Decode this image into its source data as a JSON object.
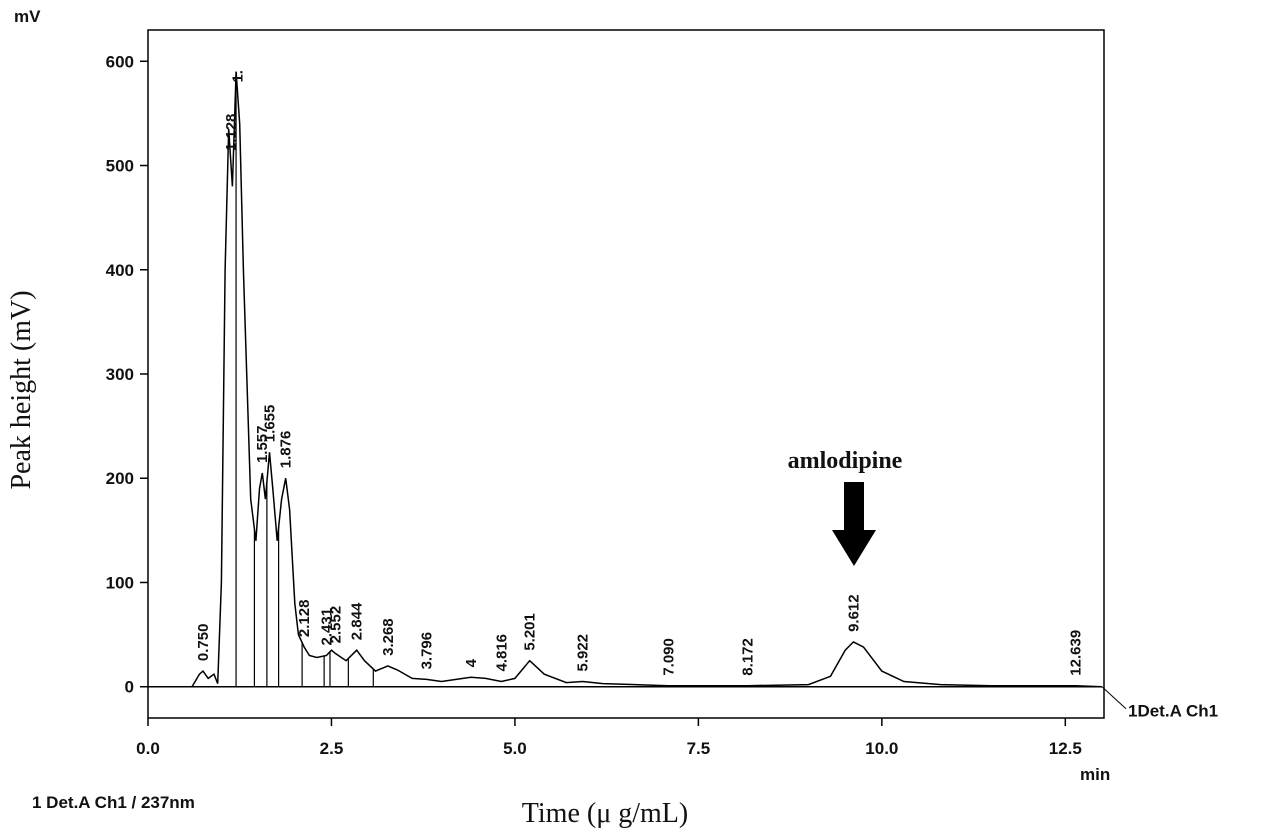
{
  "chart_data": {
    "type": "line",
    "y_unit": "mV",
    "x_unit": "min",
    "ylabel": "Peak height (mV)",
    "xlabel": "Time (μ g/mL)",
    "annotation": "amlodipine",
    "trace_label": "1Det.A Ch1",
    "footer": "1 Det.A Ch1 / 237nm",
    "color": "#000000",
    "xlim": [
      0,
      13
    ],
    "ylim": [
      -30,
      630
    ],
    "xticks": [
      {
        "value": 0,
        "label": "0.0"
      },
      2.5,
      {
        "value": 5,
        "label": "5.0"
      },
      7.5,
      {
        "value": 10,
        "label": "10.0"
      },
      12.5
    ],
    "yticks": [
      0,
      100,
      200,
      300,
      400,
      500,
      600
    ],
    "x": [
      0,
      0.6,
      0.7,
      0.75,
      0.82,
      0.9,
      0.95,
      1.0,
      1.05,
      1.1,
      1.15,
      1.2,
      1.25,
      1.3,
      1.4,
      1.47,
      1.52,
      1.557,
      1.6,
      1.655,
      1.7,
      1.76,
      1.82,
      1.876,
      1.93,
      2.0,
      2.05,
      2.128,
      2.2,
      2.3,
      2.431,
      2.5,
      2.552,
      2.7,
      2.844,
      2.95,
      3.1,
      3.268,
      3.4,
      3.6,
      3.796,
      4.0,
      4.2,
      4.4,
      4.6,
      4.816,
      5.0,
      5.201,
      5.4,
      5.7,
      5.922,
      6.2,
      7.09,
      8.172,
      9.0,
      9.3,
      9.5,
      9.612,
      9.75,
      10.0,
      10.3,
      10.8,
      11.5,
      12.639,
      13
    ],
    "values": [
      0,
      0,
      12,
      15,
      8,
      12,
      3,
      100,
      400,
      535,
      480,
      590,
      540,
      400,
      180,
      140,
      190,
      205,
      180,
      225,
      190,
      140,
      180,
      200,
      170,
      80,
      50,
      38,
      30,
      28,
      30,
      35,
      32,
      25,
      35,
      25,
      15,
      20,
      16,
      8,
      7,
      5,
      7,
      9,
      8,
      5,
      8,
      25,
      12,
      4,
      5,
      3,
      1,
      1,
      2,
      10,
      35,
      43,
      38,
      15,
      5,
      2,
      1,
      1,
      0
    ],
    "peaks": {
      "x": [
        0.75,
        1.128,
        1.22,
        1.557,
        1.655,
        1.876,
        2.128,
        2.431,
        2.552,
        2.844,
        3.268,
        3.796,
        4.4,
        4.816,
        5.201,
        5.922,
        7.09,
        8.172,
        9.612,
        12.639
      ],
      "labels": [
        "0.750",
        "1.128",
        "1.",
        "1.557",
        "1.655",
        "1.876",
        "2.128",
        "2.431",
        "2.552",
        "2.844",
        "3.268",
        "3.796",
        "4",
        "4.816",
        "5.201",
        "5.922",
        "7.090",
        "8.172",
        "9.612",
        "12.639"
      ]
    },
    "drop_lines": [
      1.2,
      1.45,
      1.62,
      1.78,
      2.1,
      2.4,
      2.48,
      2.73,
      3.07
    ]
  }
}
